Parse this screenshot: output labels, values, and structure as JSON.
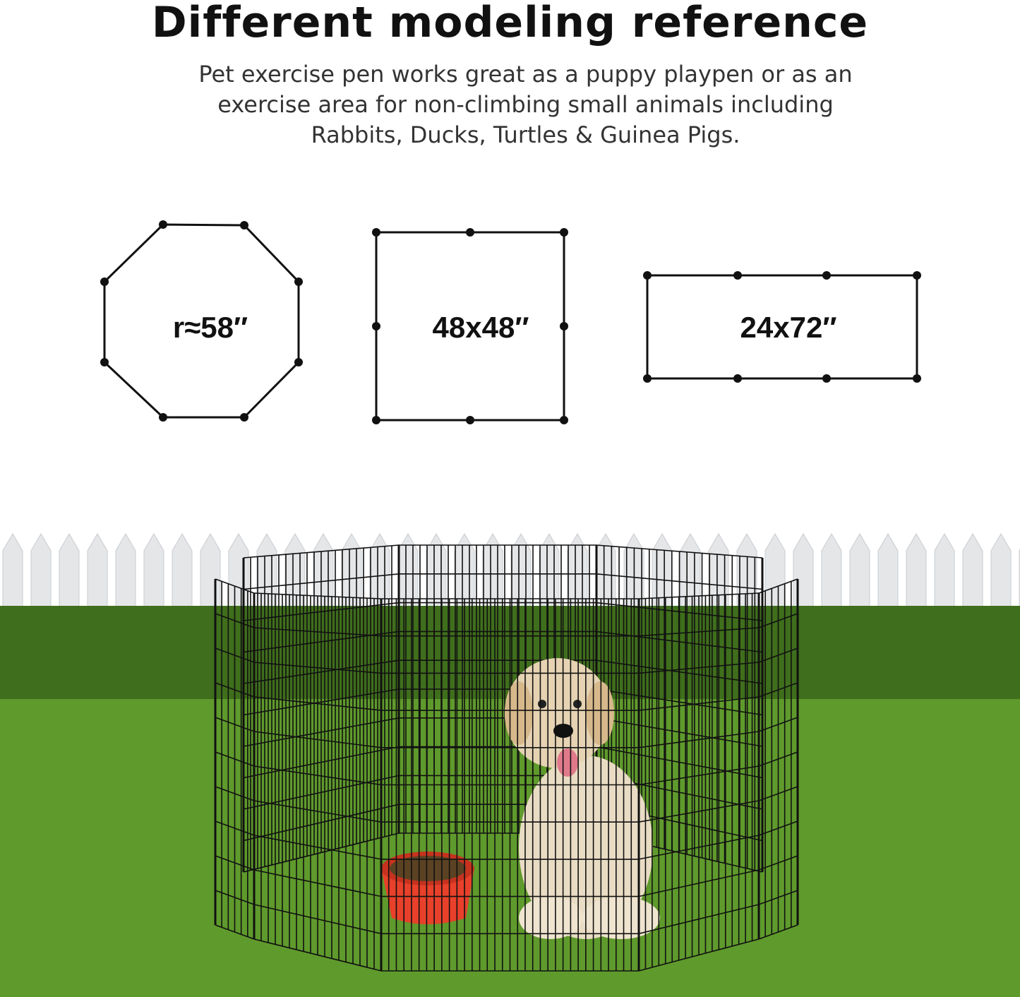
{
  "header": {
    "title": "Different modeling reference",
    "subtitle_lines": [
      "Pet exercise pen works great as a puppy playpen or as an",
      "exercise area for non-climbing small animals including",
      "Rabbits, Ducks, Turtles & Guinea Pigs."
    ]
  },
  "configurations": [
    {
      "shape": "octagon",
      "label": "r≈58″"
    },
    {
      "shape": "square",
      "label": "48x48″"
    },
    {
      "shape": "rectangle",
      "label": "24x72″"
    }
  ],
  "photo": {
    "subject": "dog-in-octagon-pen",
    "colors": {
      "grass": "#5f9a2c",
      "hedge": "#3f6e1c",
      "fence": "#e4e6e8",
      "pen_wire": "#111111",
      "bowl": "#e8402a",
      "dog": "#e9dcc4"
    }
  }
}
